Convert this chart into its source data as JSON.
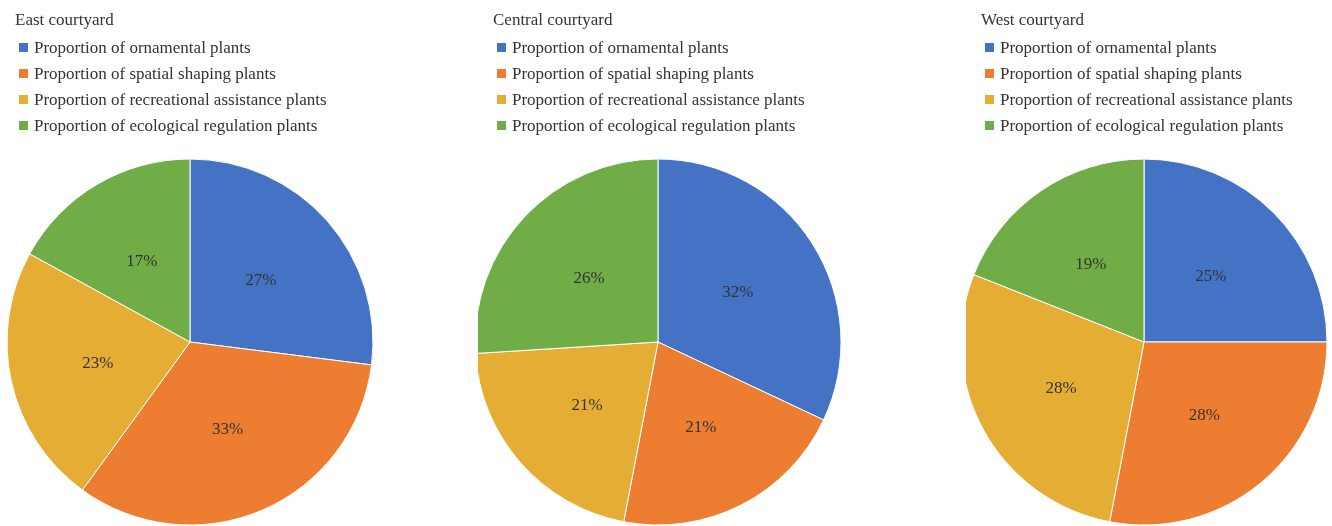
{
  "chart_data": [
    {
      "type": "pie",
      "title": "East courtyard",
      "categories": [
        "Proportion of ornamental plants",
        "Proportion of spatial shaping plants",
        "Proportion of recreational assistance plants",
        "Proportion of ecological regulation plants"
      ],
      "values": [
        27,
        33,
        23,
        17
      ],
      "value_labels": [
        "27%",
        "33%",
        "23%",
        "17%"
      ],
      "colors": [
        "#4472c4",
        "#ed7d31",
        "#e5ad33",
        "#70ad47"
      ],
      "legend": "top left"
    },
    {
      "type": "pie",
      "title": "Central courtyard",
      "categories": [
        "Proportion of ornamental plants",
        "Proportion of spatial shaping plants",
        "Proportion of recreational assistance plants",
        "Proportion of ecological regulation plants"
      ],
      "values": [
        32,
        21,
        21,
        26
      ],
      "value_labels": [
        "32%",
        "21%",
        "21%",
        "26%"
      ],
      "colors": [
        "#4472c4",
        "#ed7d31",
        "#e5ad33",
        "#70ad47"
      ],
      "legend": "top left"
    },
    {
      "type": "pie",
      "title": "West courtyard",
      "categories": [
        "Proportion of ornamental plants",
        "Proportion of spatial shaping plants",
        "Proportion of recreational assistance plants",
        "Proportion of ecological regulation plants"
      ],
      "values": [
        25,
        28,
        28,
        19
      ],
      "value_labels": [
        "25%",
        "28%",
        "28%",
        "19%"
      ],
      "colors": [
        "#4472c4",
        "#ed7d31",
        "#e5ad33",
        "#70ad47"
      ],
      "legend": "top left"
    }
  ]
}
